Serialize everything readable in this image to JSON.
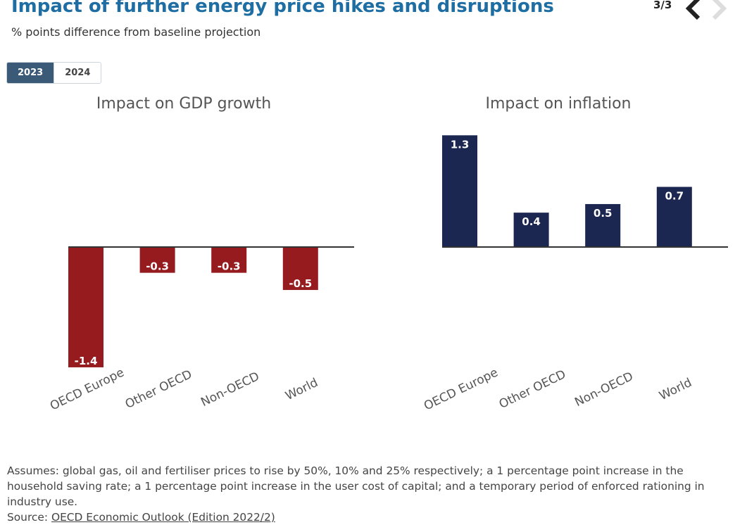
{
  "header": {
    "title": "Impact of further energy price hikes and disruptions",
    "subtitle": "% points difference from baseline projection",
    "pager": "3/3"
  },
  "tabs": [
    {
      "label": "2023",
      "active": true
    },
    {
      "label": "2024",
      "active": false
    }
  ],
  "colors": {
    "title": "#1f6ea3",
    "gdp_bar": "#961b1e",
    "inflation_bar": "#1b2651",
    "active_tab": "#3b5a78"
  },
  "chart_data": [
    {
      "type": "bar",
      "title": "Impact on GDP growth",
      "categories": [
        "OECD Europe",
        "Other OECD",
        "Non-OECD",
        "World"
      ],
      "values": [
        -1.4,
        -0.3,
        -0.3,
        -0.5
      ],
      "labels": [
        "-1.4",
        "-0.3",
        "-0.3",
        "-0.5"
      ],
      "color": "#961b1e",
      "ylim": [
        -1.4,
        0
      ]
    },
    {
      "type": "bar",
      "title": "Impact on inflation",
      "categories": [
        "OECD Europe",
        "Other OECD",
        "Non-OECD",
        "World"
      ],
      "values": [
        1.3,
        0.4,
        0.5,
        0.7
      ],
      "labels": [
        "1.3",
        "0.4",
        "0.5",
        "0.7"
      ],
      "color": "#1b2651",
      "ylim": [
        0,
        1.3
      ]
    }
  ],
  "footer": {
    "note": "Assumes: global gas, oil and fertiliser prices to rise by 50%, 10% and 25% respectively; a 1 percentage point increase in the household saving rate; a 1 percentage point increase in the user cost of capital; and a temporary period of enforced rationing in industry use.",
    "source_label": "Source:",
    "source_link": "OECD Economic Outlook (Edition 2022/2)"
  }
}
